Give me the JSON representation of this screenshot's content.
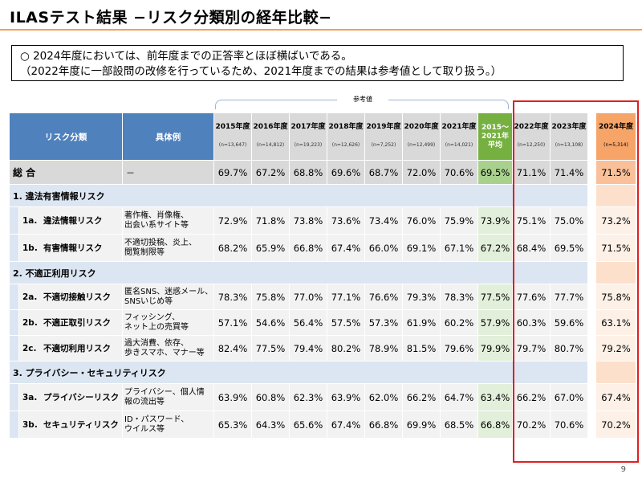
{
  "title": "ILASテスト結果 −リスク分類別の経年比較−",
  "summary": {
    "line1": "○ 2024年度においては、前年度までの正答率とほぼ横ばいである。",
    "line2": "（2022年度に一部設問の改修を行っているため、2021年度までの結果は参考値として取り扱う。）"
  },
  "reference_label": "参考値",
  "headers": {
    "category": "リスク分類",
    "example": "具体例",
    "years": [
      {
        "year": "2015年度",
        "n": "(n=13,647)"
      },
      {
        "year": "2016年度",
        "n": "(n=14,812)"
      },
      {
        "year": "2017年度",
        "n": "(n=19,223)"
      },
      {
        "year": "2018年度",
        "n": "(n=12,626)"
      },
      {
        "year": "2019年度",
        "n": "(n=7,252)"
      },
      {
        "year": "2020年度",
        "n": "(n=12,499)"
      },
      {
        "year": "2021年度",
        "n": "(n=14,021)"
      }
    ],
    "avg_line1": "2015～",
    "avg_line2": "2021年",
    "avg_line3": "平均",
    "recent": [
      {
        "year": "2022年度",
        "n": "(n=12,250)"
      },
      {
        "year": "2023年度",
        "n": "(n=13,108)"
      }
    ],
    "latest": {
      "year": "2024年度",
      "n": "(n=5,314)"
    }
  },
  "total": {
    "label": "総 合",
    "example": "－",
    "values": [
      "69.7%",
      "67.2%",
      "68.8%",
      "69.6%",
      "68.7%",
      "72.0%",
      "70.6%"
    ],
    "avg": "69.5%",
    "recent": [
      "71.1%",
      "71.4%"
    ],
    "latest": "71.5%"
  },
  "categories": [
    {
      "label": "1. 違法有害情報リスク",
      "items": [
        {
          "code": "1a.",
          "name": "違法情報リスク",
          "ex1": "著作権、肖像権、",
          "ex2": "出会い系サイト等",
          "values": [
            "72.9%",
            "71.8%",
            "73.8%",
            "73.6%",
            "73.4%",
            "76.0%",
            "75.9%"
          ],
          "avg": "73.9%",
          "recent": [
            "75.1%",
            "75.0%"
          ],
          "latest": "73.2%"
        },
        {
          "code": "1b.",
          "name": "有害情報リスク",
          "ex1": "不適切投稿、炎上、",
          "ex2": "閲覧制限等",
          "values": [
            "68.2%",
            "65.9%",
            "66.8%",
            "67.4%",
            "66.0%",
            "69.1%",
            "67.1%"
          ],
          "avg": "67.2%",
          "recent": [
            "68.4%",
            "69.5%"
          ],
          "latest": "71.5%"
        }
      ]
    },
    {
      "label": "2. 不適正利用リスク",
      "items": [
        {
          "code": "2a.",
          "name": "不適切接触リスク",
          "ex1": "匿名SNS、迷惑メール、",
          "ex2": "SNSいじめ等",
          "values": [
            "78.3%",
            "75.8%",
            "77.0%",
            "77.1%",
            "76.6%",
            "79.3%",
            "78.3%"
          ],
          "avg": "77.5%",
          "recent": [
            "77.6%",
            "77.7%"
          ],
          "latest": "75.8%"
        },
        {
          "code": "2b.",
          "name": "不適正取引リスク",
          "ex1": "フィッシング、",
          "ex2": "ネット上の売買等",
          "values": [
            "57.1%",
            "54.6%",
            "56.4%",
            "57.5%",
            "57.3%",
            "61.9%",
            "60.2%"
          ],
          "avg": "57.9%",
          "recent": [
            "60.3%",
            "59.6%"
          ],
          "latest": "63.1%"
        },
        {
          "code": "2c.",
          "name": "不適切利用リスク",
          "ex1": "過大消費、依存、",
          "ex2": "歩きスマホ、マナー等",
          "values": [
            "82.4%",
            "77.5%",
            "79.4%",
            "80.2%",
            "78.9%",
            "81.5%",
            "79.6%"
          ],
          "avg": "79.9%",
          "recent": [
            "79.7%",
            "80.7%"
          ],
          "latest": "79.2%"
        }
      ]
    },
    {
      "label": "3. プライバシー・セキュリティリスク",
      "items": [
        {
          "code": "3a.",
          "name": "プライバシーリスク",
          "ex1": "プライバシー、個人情",
          "ex2": "報の流出等",
          "values": [
            "63.9%",
            "60.8%",
            "62.3%",
            "63.9%",
            "62.0%",
            "66.2%",
            "64.7%"
          ],
          "avg": "63.4%",
          "recent": [
            "66.2%",
            "67.0%"
          ],
          "latest": "67.4%"
        },
        {
          "code": "3b.",
          "name": "セキュリティリスク",
          "ex1": "ID・パスワード、",
          "ex2": "ウイルス等",
          "values": [
            "65.3%",
            "64.3%",
            "65.6%",
            "67.4%",
            "66.8%",
            "69.9%",
            "68.5%"
          ],
          "avg": "66.8%",
          "recent": [
            "70.2%",
            "70.6%"
          ],
          "latest": "70.2%"
        }
      ]
    }
  ],
  "page_number": "9",
  "colors": {
    "header_blue": "#4f81bd",
    "avg_green": "#76b041",
    "latest_orange": "#f7a468",
    "highlight_red": "#e02020",
    "title_rule": "#f0a050"
  }
}
